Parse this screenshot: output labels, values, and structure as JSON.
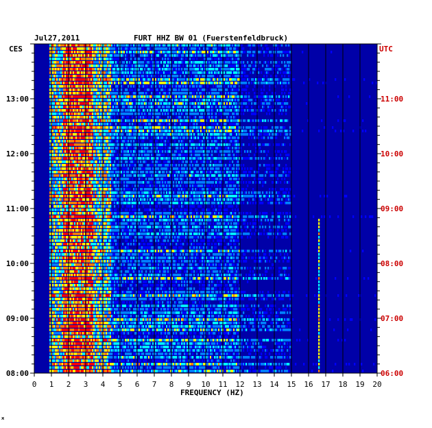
{
  "header": {
    "date": "Jul27,2011",
    "title": "FURT HHZ BW 01 (Fuerstenfeldbruck)"
  },
  "colors": {
    "background": "#ffffff",
    "plot_base": "#0000a8",
    "local_time_text": "#000000",
    "utc_text": "#cc0000",
    "grid": "#000000"
  },
  "chart_data": {
    "type": "heatmap",
    "title": "FURT HHZ BW 01 (Fuerstenfeldbruck)",
    "xlabel": "FREQUENCY (HZ)",
    "x_range": [
      0,
      20
    ],
    "x_ticks": [
      "0",
      "1",
      "2",
      "3",
      "4",
      "5",
      "6",
      "7",
      "8",
      "9",
      "10",
      "11",
      "12",
      "13",
      "14",
      "15",
      "16",
      "17",
      "18",
      "19",
      "20"
    ],
    "left_axis": {
      "label": "CES",
      "ticks": [
        "13:00",
        "12:00",
        "11:00",
        "10:00",
        "09:00",
        "08:00"
      ],
      "tick_hours": [
        13,
        12,
        11,
        10,
        9,
        8
      ],
      "range_hours": [
        8,
        14
      ]
    },
    "right_axis": {
      "label": "UTC",
      "ticks": [
        "11:00",
        "10:00",
        "09:00",
        "08:00",
        "07:00",
        "06:00"
      ],
      "tick_hours": [
        11,
        10,
        9,
        8,
        7,
        6
      ]
    },
    "minor_tick_minutes": 10,
    "colormap": [
      "#00008b",
      "#0000ff",
      "#0080ff",
      "#00ffff",
      "#ffff00",
      "#ff8000",
      "#ff0000"
    ],
    "grid": true,
    "dominant_band_hz": [
      2,
      3.2
    ],
    "narrow_line_hz": 16.6
  },
  "footer": {
    "mark": "ж"
  }
}
